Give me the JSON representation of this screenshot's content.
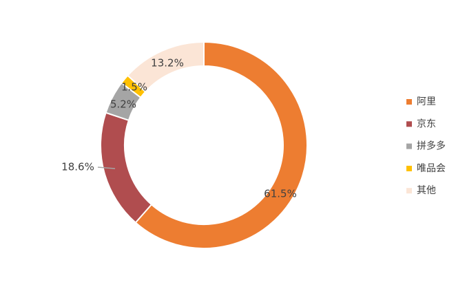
{
  "chart_data": {
    "type": "donut",
    "categories": [
      "阿里",
      "京东",
      "拼多多",
      "唯品会",
      "其他"
    ],
    "values": [
      61.5,
      18.6,
      5.2,
      1.5,
      13.2
    ],
    "value_labels": [
      "61.5%",
      "18.6%",
      "5.2%",
      "1.5%",
      "13.2%"
    ],
    "colors": [
      "#ed7d31",
      "#b04d4f",
      "#a5a5a5",
      "#ffc000",
      "#fbe5d6"
    ],
    "legend": "right"
  }
}
